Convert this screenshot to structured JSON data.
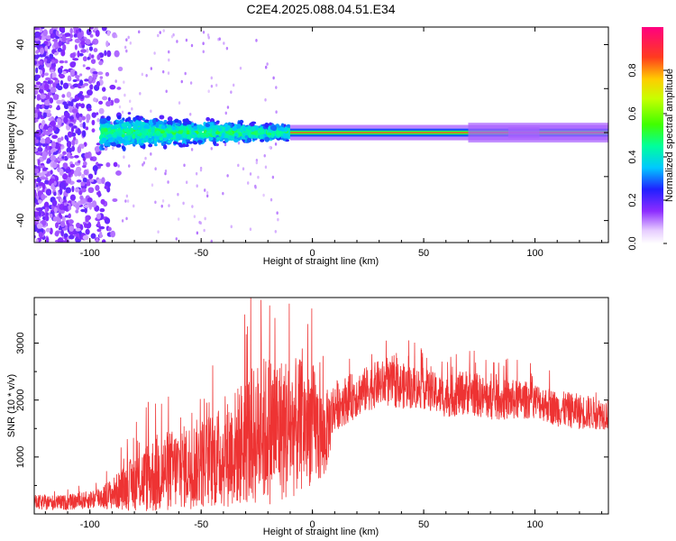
{
  "title": "C2E4.2025.088.04.51.E34",
  "chart_data": [
    {
      "type": "heatmap",
      "xlabel": "Height of straight line (km)",
      "ylabel": "Frequency (Hz)",
      "xlim": [
        -125,
        133
      ],
      "ylim": [
        -50,
        48
      ],
      "xticks": [
        -100,
        -50,
        0,
        50,
        100
      ],
      "yticks": [
        -40,
        -20,
        0,
        20,
        40
      ],
      "colorbar": {
        "label": "Normalized spectral amplitude",
        "range": [
          0,
          1
        ],
        "ticks": [
          "0.0",
          "0.2",
          "0.4",
          "0.6",
          "0.8"
        ],
        "colormap": "rainbow-white-to-magenta"
      },
      "description_values": {
        "noise_region_x": [
          -125,
          -90
        ],
        "scatter_band_x": [
          -95,
          -10
        ],
        "scatter_band_halfwidth_hz": 10,
        "narrow_band_x": [
          -10,
          133
        ],
        "center_freq_hz": 0
      }
    },
    {
      "type": "line",
      "xlabel": "Height of straight line (km)",
      "ylabel": "SNR (10 * v/v)",
      "xlim": [
        -125,
        133
      ],
      "ylim": [
        0,
        3800
      ],
      "xticks": [
        -100,
        -50,
        0,
        50,
        100
      ],
      "yticks": [
        1000,
        2000,
        3000
      ],
      "color": "#ee3333",
      "envelope": {
        "x": [
          -125,
          -110,
          -100,
          -90,
          -80,
          -70,
          -60,
          -50,
          -40,
          -30,
          -20,
          -10,
          0,
          5,
          10,
          20,
          30,
          40,
          50,
          60,
          70,
          80,
          90,
          100,
          110,
          120,
          133
        ],
        "mean": [
          200,
          200,
          250,
          350,
          550,
          700,
          800,
          900,
          1000,
          1300,
          1500,
          1500,
          1600,
          1300,
          1900,
          2100,
          2300,
          2250,
          2200,
          2050,
          2150,
          2000,
          2000,
          2000,
          1850,
          1800,
          1750
        ],
        "spread": [
          150,
          150,
          180,
          300,
          550,
          800,
          800,
          900,
          1000,
          1300,
          1500,
          1400,
          1200,
          900,
          500,
          450,
          450,
          450,
          400,
          400,
          450,
          400,
          400,
          350,
          350,
          350,
          300
        ]
      }
    }
  ]
}
